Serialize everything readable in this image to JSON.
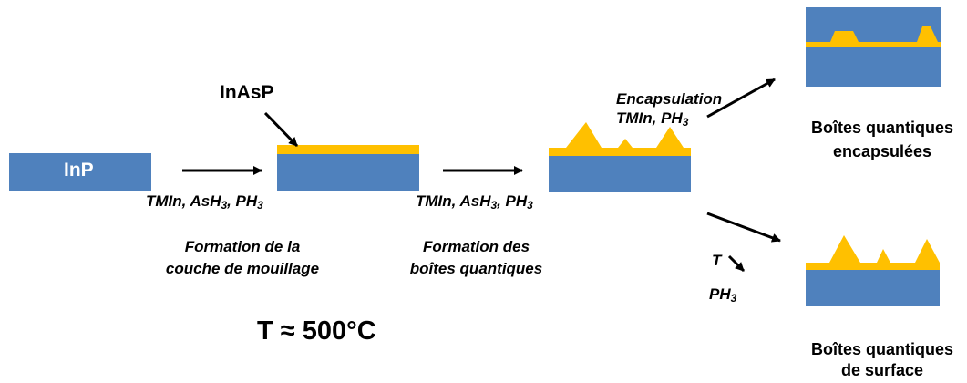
{
  "colors": {
    "substrate": "#4f81bd",
    "inasp": "#ffc000",
    "arrow": "#000000"
  },
  "labels": {
    "inp": "InP",
    "inasp": "InAsP",
    "precursors_1": {
      "text": "TMIn, AsH",
      "sub1": "3",
      "mid": ", PH",
      "sub2": "3"
    },
    "precursors_2": {
      "text": "TMIn, AsH",
      "sub1": "3",
      "mid": ", PH",
      "sub2": "3"
    },
    "formation_1_line1": "Formation de la",
    "formation_1_line2": "couche de mouillage",
    "formation_2_line1": "Formation des",
    "formation_2_line2": "boîtes quantiques",
    "encapsulation": "Encapsulation",
    "encapsulation_precursors": {
      "text": "TMIn, PH",
      "sub": "3"
    },
    "temp_t": "T",
    "temp_ph": "PH",
    "temp_ph_sub": "3",
    "temperature": "T ≈ 500°C",
    "result_top_line1": "Boîtes quantiques",
    "result_top_line2": "encapsulées",
    "result_bottom_line1": "Boîtes quantiques",
    "result_bottom_line2": "de surface"
  }
}
